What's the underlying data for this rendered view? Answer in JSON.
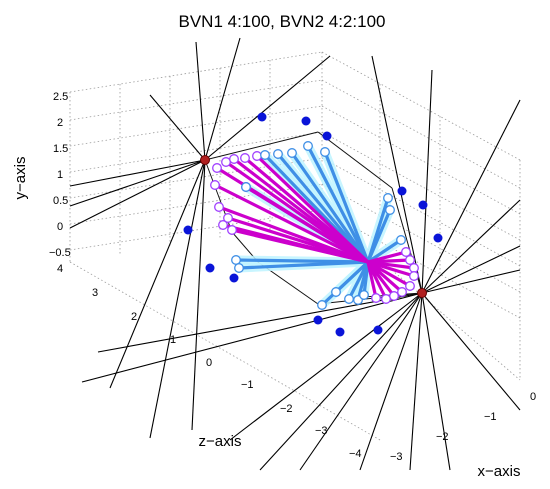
{
  "chart_data": {
    "type": "scatter",
    "title": "BVN1 4:100, BVN2 4:2:100",
    "xlabel": "x−axis",
    "ylabel": "y−axis",
    "zlabel": "z−axis",
    "grid": true,
    "ticks": {
      "y": [
        "−0.5",
        "0",
        "0.5",
        "1",
        "1.5",
        "2",
        "2.5"
      ],
      "z": [
        "4",
        "3",
        "2",
        "1",
        "0",
        "−1",
        "−2",
        "−3",
        "−4"
      ],
      "x": [
        "−3",
        "−2",
        "−1",
        "0"
      ]
    },
    "colors": {
      "magenta": "#cc00cc",
      "violet": "#a040ff",
      "blue": "#3f8fe6",
      "cyan_glow": "#bff4ff",
      "dot": "#0a14d8",
      "red_node": "#b02020",
      "grid": "#9a9a9a"
    }
  }
}
